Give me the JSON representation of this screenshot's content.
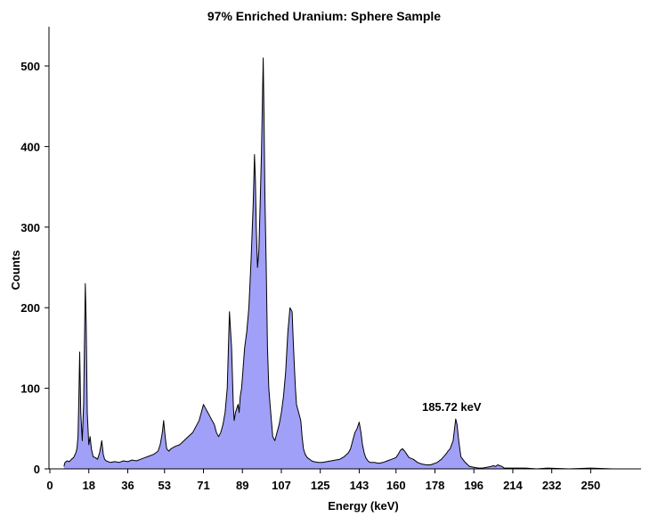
{
  "chart_data": {
    "type": "area",
    "title": "97% Enriched Uranium: Sphere Sample",
    "xlabel": "Energy (keV)",
    "ylabel": "Counts",
    "xlim": [
      0,
      270
    ],
    "ylim": [
      0,
      550
    ],
    "xticks": [
      0,
      18,
      36,
      53,
      71,
      89,
      107,
      125,
      143,
      160,
      178,
      196,
      214,
      232,
      250
    ],
    "yticks": [
      0,
      100,
      200,
      300,
      400,
      500
    ],
    "grid": false,
    "legend": "none",
    "fill_color": "#a0a0f8",
    "line_color": "#000000",
    "series": [
      {
        "x": [
          6.5,
          7,
          8,
          9,
          10,
          11,
          12,
          12.5,
          13,
          13.4,
          13.8,
          14.3,
          15,
          15.6,
          16,
          16.4,
          16.8,
          17.3,
          18,
          18.6,
          19.2,
          20,
          21,
          22,
          23,
          24,
          24.7,
          25.3,
          26,
          28,
          30,
          32,
          34,
          36,
          38,
          40,
          42,
          44,
          46,
          48,
          49,
          50,
          51,
          52,
          52.6,
          53.3,
          54,
          55,
          56,
          58,
          60,
          62,
          64,
          66,
          68,
          69,
          70,
          71,
          72,
          73,
          74,
          75,
          76,
          77,
          78,
          79,
          80,
          81,
          82,
          83,
          84,
          84.8,
          85.2,
          85.8,
          86.4,
          87,
          87.5,
          88,
          88.6,
          89.2,
          90,
          91,
          92,
          93,
          94,
          94.6,
          95,
          95.4,
          96,
          96.6,
          97.2,
          97.8,
          98.2,
          98.6,
          99,
          99.4,
          100,
          100.6,
          101.2,
          101.8,
          102.4,
          103,
          104,
          105,
          106,
          107,
          108,
          109,
          110,
          111,
          112,
          112.5,
          113,
          113.5,
          114,
          115,
          116,
          116.6,
          117.2,
          118,
          119,
          120,
          121,
          122,
          124,
          126,
          128,
          130,
          132,
          134,
          136,
          138,
          139,
          140,
          141,
          142,
          143,
          143.8,
          144.5,
          145.3,
          146,
          147,
          148,
          150,
          152,
          154,
          156,
          158,
          160,
          161,
          162,
          163,
          164,
          165,
          166,
          168,
          170,
          172,
          174,
          176,
          177,
          178,
          179,
          180,
          181,
          182,
          183,
          184,
          185,
          185.7,
          186.4,
          187,
          187.6,
          188.2,
          189,
          190,
          192,
          194,
          196,
          198,
          200,
          202,
          204,
          205,
          206,
          207,
          208,
          209,
          210,
          215,
          220,
          225,
          230,
          240,
          250,
          260,
          263
        ],
        "y": [
          3,
          8,
          10,
          9,
          12,
          14,
          20,
          25,
          40,
          90,
          145,
          70,
          35,
          80,
          160,
          230,
          180,
          70,
          30,
          40,
          25,
          15,
          14,
          12,
          20,
          35,
          18,
          12,
          10,
          8,
          9,
          8,
          10,
          9,
          11,
          10,
          12,
          14,
          16,
          18,
          20,
          22,
          30,
          45,
          60,
          40,
          25,
          22,
          25,
          28,
          30,
          35,
          40,
          45,
          55,
          60,
          70,
          80,
          75,
          70,
          65,
          60,
          55,
          45,
          40,
          45,
          55,
          70,
          100,
          195,
          150,
          80,
          60,
          70,
          75,
          80,
          70,
          90,
          100,
          120,
          150,
          170,
          200,
          260,
          330,
          390,
          360,
          300,
          250,
          270,
          330,
          390,
          450,
          510,
          440,
          340,
          250,
          150,
          100,
          80,
          60,
          40,
          35,
          45,
          55,
          70,
          90,
          120,
          170,
          200,
          195,
          160,
          130,
          100,
          80,
          70,
          60,
          40,
          25,
          18,
          14,
          12,
          10,
          9,
          8,
          8,
          9,
          10,
          11,
          12,
          15,
          20,
          25,
          35,
          45,
          50,
          58,
          45,
          30,
          20,
          14,
          10,
          8,
          8,
          7,
          8,
          10,
          12,
          14,
          18,
          23,
          25,
          22,
          18,
          14,
          12,
          8,
          6,
          5,
          5,
          6,
          7,
          8,
          10,
          12,
          15,
          18,
          22,
          25,
          30,
          35,
          48,
          62,
          55,
          35,
          15,
          8,
          3,
          2,
          1,
          1,
          2,
          3,
          4,
          3,
          5,
          4,
          3,
          1,
          1,
          1,
          0,
          1,
          0,
          1,
          0,
          0
        ]
      }
    ],
    "annotations": [
      {
        "text": "185.72 keV",
        "x": 185.72,
        "y": 62
      }
    ]
  }
}
